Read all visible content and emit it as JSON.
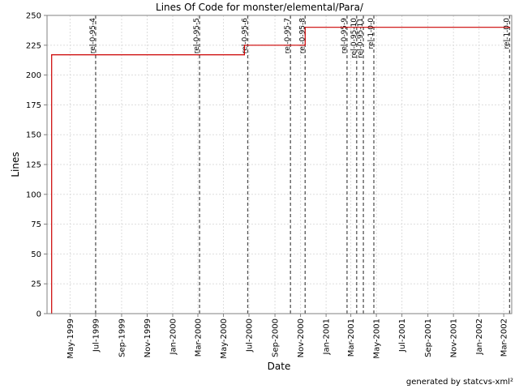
{
  "chart_data": {
    "type": "line",
    "title": "Lines Of Code for monster/elemental/Para/",
    "xlabel": "Date",
    "ylabel": "Lines",
    "ylim": [
      0,
      250
    ],
    "yticks": [
      0,
      25,
      50,
      75,
      100,
      125,
      150,
      175,
      200,
      225,
      250
    ],
    "x_range": [
      "1999-03-07",
      "2002-03-20"
    ],
    "xticks": [
      {
        "date": "1999-05-01",
        "label": "May-1999"
      },
      {
        "date": "1999-07-01",
        "label": "Jul-1999"
      },
      {
        "date": "1999-09-01",
        "label": "Sep-1999"
      },
      {
        "date": "1999-11-01",
        "label": "Nov-1999"
      },
      {
        "date": "2000-01-01",
        "label": "Jan-2000"
      },
      {
        "date": "2000-03-01",
        "label": "Mar-2000"
      },
      {
        "date": "2000-05-01",
        "label": "May-2000"
      },
      {
        "date": "2000-07-01",
        "label": "Jul-2000"
      },
      {
        "date": "2000-09-01",
        "label": "Sep-2000"
      },
      {
        "date": "2000-11-01",
        "label": "Nov-2000"
      },
      {
        "date": "2001-01-01",
        "label": "Jan-2001"
      },
      {
        "date": "2001-03-01",
        "label": "Mar-2001"
      },
      {
        "date": "2001-05-01",
        "label": "May-2001"
      },
      {
        "date": "2001-07-01",
        "label": "Jul-2001"
      },
      {
        "date": "2001-09-01",
        "label": "Sep-2001"
      },
      {
        "date": "2001-11-01",
        "label": "Nov-2001"
      },
      {
        "date": "2002-01-01",
        "label": "Jan-2002"
      },
      {
        "date": "2002-03-01",
        "label": "Mar-2002"
      }
    ],
    "grid": true,
    "series": [
      {
        "color": "#cc0000",
        "step": true,
        "points": [
          {
            "x": "1999-03-18",
            "y": 0
          },
          {
            "x": "1999-03-18",
            "y": 217
          },
          {
            "x": "2000-06-20",
            "y": 217
          },
          {
            "x": "2000-06-20",
            "y": 225
          },
          {
            "x": "2000-11-12",
            "y": 225
          },
          {
            "x": "2000-11-12",
            "y": 240
          },
          {
            "x": "2002-03-15",
            "y": 240
          }
        ]
      }
    ],
    "tags": [
      {
        "date": "1999-07-01",
        "label": "rel-0-95-4"
      },
      {
        "date": "2000-03-05",
        "label": "rel-0-95-5"
      },
      {
        "date": "2000-06-28",
        "label": "rel-0-95-6"
      },
      {
        "date": "2000-10-08",
        "label": "rel-0-95-7"
      },
      {
        "date": "2000-11-12",
        "label": "rel-0-95-8"
      },
      {
        "date": "2001-02-20",
        "label": "rel-0-95-9"
      },
      {
        "date": "2001-03-15",
        "label": "rel-0-95-10"
      },
      {
        "date": "2001-03-31",
        "label": "rel-0-95-11"
      },
      {
        "date": "2001-04-25",
        "label": "rel-1-0-0"
      },
      {
        "date": "2002-03-15",
        "label": "rel-1-0-0"
      }
    ],
    "tag_color": "#555555",
    "grid_color": "#dddddd"
  },
  "footer": "generated by statcvs-xml²"
}
